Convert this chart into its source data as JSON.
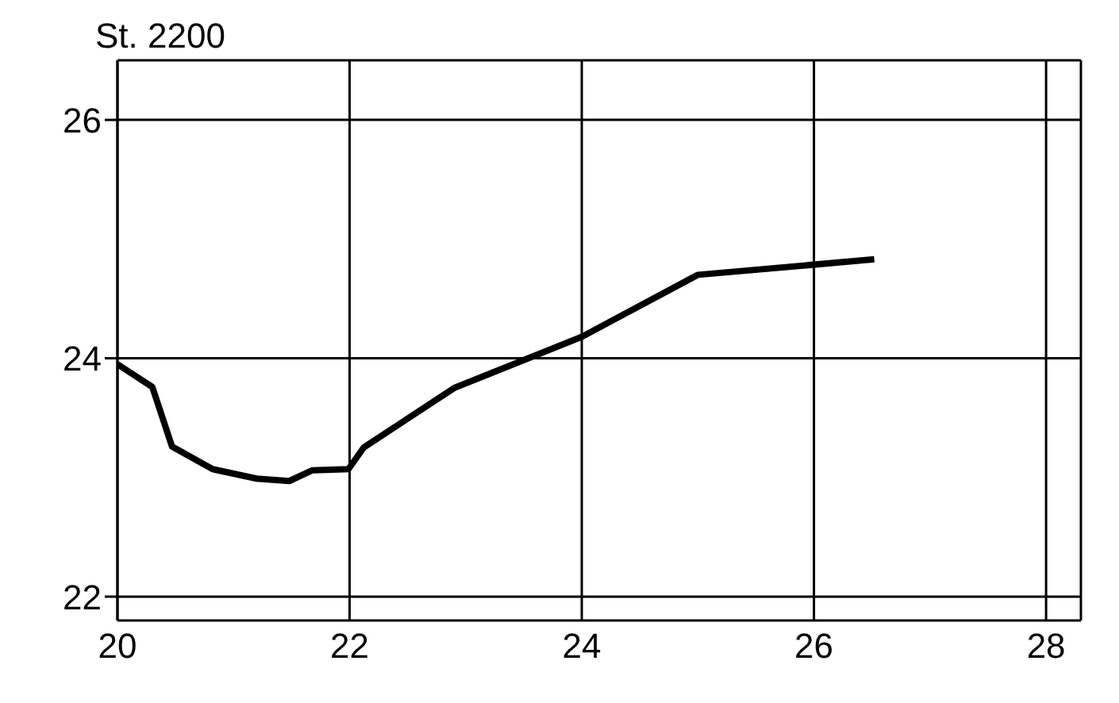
{
  "chart_data": {
    "type": "line",
    "title": "St. 2200",
    "x": [
      20,
      20.3,
      20.47,
      20.82,
      21.2,
      21.48,
      21.68,
      21.99,
      22.12,
      22.9,
      24.0,
      25.0,
      26.52
    ],
    "series": [
      {
        "color": "#000000",
        "values": [
          23.95,
          23.76,
          23.26,
          23.07,
          22.99,
          22.97,
          23.06,
          23.07,
          23.25,
          23.75,
          24.18,
          24.7,
          24.83
        ]
      }
    ],
    "xlim": [
      20,
      28.3
    ],
    "xticks": [
      20,
      22,
      24,
      26,
      28
    ],
    "ylim": [
      21.8,
      26.5
    ],
    "yticks": [
      22,
      24,
      26
    ],
    "grid": true,
    "legend": false,
    "marker": "none",
    "line_style": "solid"
  }
}
